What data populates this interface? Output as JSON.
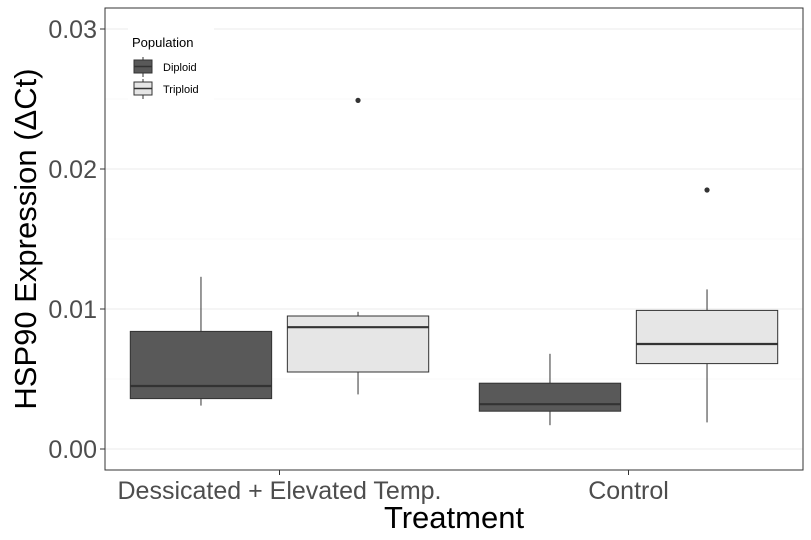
{
  "chart_data": {
    "type": "boxplot",
    "title": "",
    "xlabel": "Treatment",
    "ylabel": "HSP90 Expression (ΔCt)",
    "ylim": [
      -0.0015,
      0.0315
    ],
    "yticks": [
      "0.00",
      "0.01",
      "0.02",
      "0.03"
    ],
    "categories": [
      "Dessicated + Elevated Temp.",
      "Control"
    ],
    "grid": "major and minor horizontal",
    "legend": {
      "title": "Population",
      "placement": "top-left",
      "entries": [
        "Diploid",
        "Triploid"
      ]
    },
    "series": [
      {
        "name": "Diploid",
        "color": "#595959",
        "boxes": [
          {
            "category": "Dessicated + Elevated Temp.",
            "whisker_low": 0.0031,
            "q1": 0.0036,
            "median": 0.0045,
            "q3": 0.0084,
            "whisker_high": 0.0123,
            "outliers": []
          },
          {
            "category": "Control",
            "whisker_low": 0.0017,
            "q1": 0.0027,
            "median": 0.0032,
            "q3": 0.0047,
            "whisker_high": 0.0068,
            "outliers": []
          }
        ]
      },
      {
        "name": "Triploid",
        "color": "#e6e6e6",
        "boxes": [
          {
            "category": "Dessicated + Elevated Temp.",
            "whisker_low": 0.0039,
            "q1": 0.0055,
            "median": 0.0087,
            "q3": 0.0095,
            "whisker_high": 0.0098,
            "outliers": [
              0.0249
            ]
          },
          {
            "category": "Control",
            "whisker_low": 0.0019,
            "q1": 0.0061,
            "median": 0.0075,
            "q3": 0.0099,
            "whisker_high": 0.0114,
            "outliers": [
              0.0185
            ]
          }
        ]
      }
    ]
  }
}
